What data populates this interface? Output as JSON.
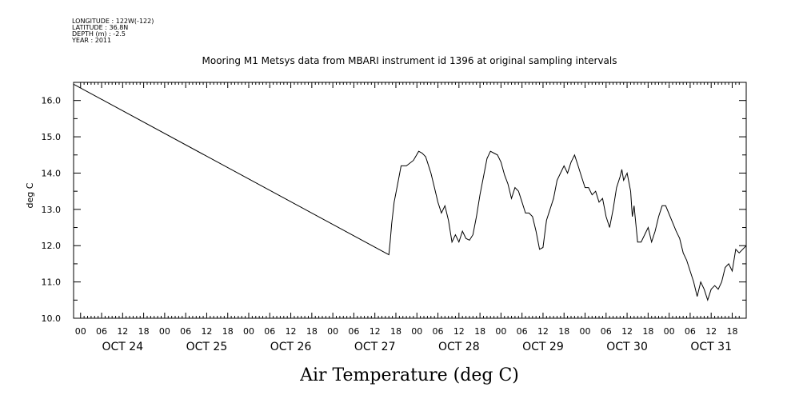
{
  "meta_lines": [
    "LONGITUDE : 122W(-122)",
    "LATITUDE : 36.8N",
    "DEPTH (m) : -2.5",
    "YEAR : 2011"
  ],
  "chart_data": {
    "type": "line",
    "title": "Mooring M1 Metsys data from MBARI instrument id 1396 at original sampling intervals",
    "xlabel": "Air Temperature (deg C)",
    "ylabel": "deg C",
    "x_unit": "hours since OCT 24 00:00",
    "xlim": [
      -2,
      190
    ],
    "ylim": [
      10.0,
      16.5
    ],
    "yticks": [
      10.0,
      11.0,
      12.0,
      13.0,
      14.0,
      15.0,
      16.0
    ],
    "hour_tick_labels": [
      "00",
      "06",
      "12",
      "18",
      "00",
      "06",
      "12",
      "18",
      "00",
      "06",
      "12",
      "18",
      "00",
      "06",
      "12",
      "18",
      "00",
      "06",
      "12",
      "18",
      "00",
      "06",
      "12",
      "18",
      "00",
      "06",
      "12",
      "18",
      "00",
      "06",
      "12",
      "18"
    ],
    "day_labels": [
      "OCT 24",
      "OCT 25",
      "OCT 26",
      "OCT 27",
      "OCT 28",
      "OCT 29",
      "OCT 30",
      "OCT 31"
    ],
    "grid": false,
    "series": [
      {
        "x": [
          -2,
          88,
          88.4,
          88.8,
          89.5,
          90.5,
          91.5,
          93,
          95,
          96.5,
          97.5,
          98.5,
          99,
          100,
          101,
          102,
          103,
          104,
          105,
          105.5,
          106,
          107,
          108,
          109,
          110,
          111,
          112,
          113,
          114,
          115,
          116,
          117,
          118,
          119,
          120,
          121,
          122,
          123,
          124,
          125,
          126,
          127,
          128,
          129,
          130,
          131,
          132,
          133,
          134,
          135,
          136,
          137,
          138,
          139,
          140,
          141,
          142,
          143,
          144,
          145,
          146,
          147,
          148,
          149,
          150,
          151,
          152,
          153,
          154,
          154.5,
          155,
          156,
          157,
          157.5,
          158,
          158.5,
          159,
          160,
          161,
          162,
          163,
          164,
          165,
          166,
          167,
          170,
          171,
          172,
          173,
          174,
          175,
          176,
          177,
          178,
          179,
          180,
          181,
          182,
          183,
          184,
          185,
          186,
          187,
          188,
          189,
          190
        ],
        "y": [
          16.45,
          11.75,
          12.15,
          12.6,
          13.2,
          13.7,
          14.2,
          14.2,
          14.35,
          14.6,
          14.55,
          14.45,
          14.3,
          14.0,
          13.6,
          13.2,
          12.9,
          13.1,
          12.7,
          12.4,
          12.1,
          12.3,
          12.1,
          12.4,
          12.2,
          12.15,
          12.3,
          12.8,
          13.4,
          13.9,
          14.4,
          14.6,
          14.55,
          14.5,
          14.3,
          13.95,
          13.7,
          13.3,
          13.6,
          13.5,
          13.2,
          12.9,
          12.9,
          12.8,
          12.4,
          11.9,
          11.95,
          12.7,
          13.0,
          13.3,
          13.8,
          14.0,
          14.2,
          14.0,
          14.3,
          14.5,
          14.2,
          13.9,
          13.6,
          13.6,
          13.4,
          13.5,
          13.2,
          13.3,
          12.8,
          12.5,
          13.0,
          13.6,
          13.9,
          14.1,
          13.8,
          14.0,
          13.5,
          12.8,
          13.1,
          12.6,
          12.1,
          12.1,
          12.3,
          12.5,
          12.1,
          12.4,
          12.8,
          13.1,
          13.1,
          12.4,
          12.2,
          11.8,
          11.6,
          11.3,
          11.0,
          10.6,
          11.0,
          10.8,
          10.5,
          10.8,
          10.9,
          10.8,
          11.0,
          11.4,
          11.5,
          11.3,
          11.9,
          11.8,
          11.9,
          12.0
        ]
      }
    ]
  }
}
